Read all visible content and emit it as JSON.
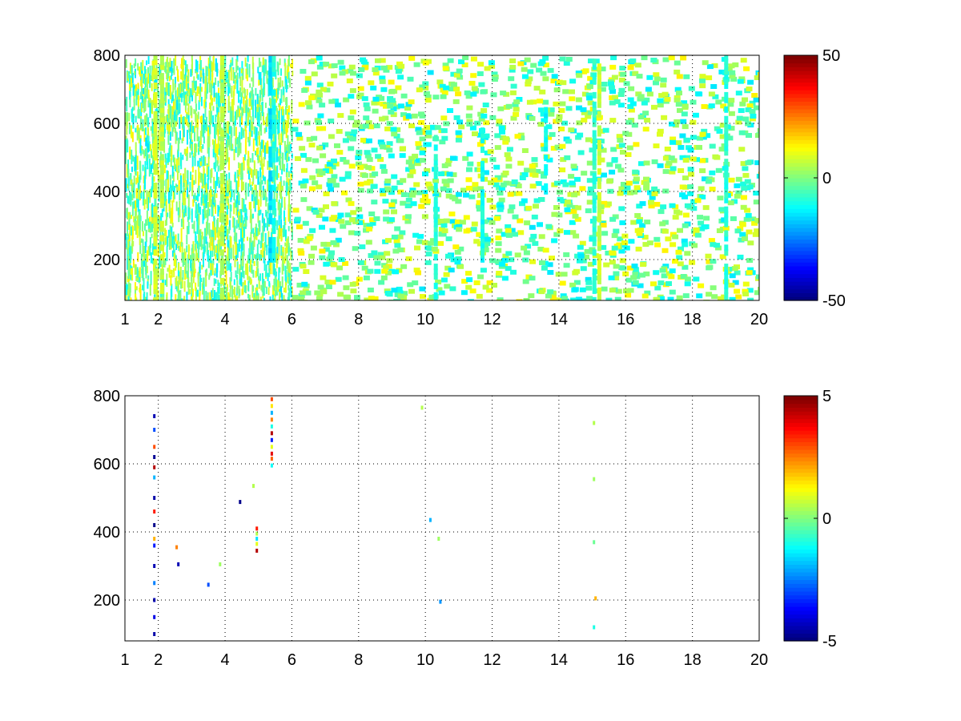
{
  "chart_data": [
    {
      "type": "heatmap",
      "title": "",
      "xlabel": "",
      "ylabel": "",
      "xlim": [
        1,
        20
      ],
      "ylim": [
        80,
        800
      ],
      "x_ticks": [
        "1",
        "2",
        "4",
        "6",
        "8",
        "10",
        "12",
        "14",
        "16",
        "18",
        "20"
      ],
      "x_tick_values": [
        1,
        2,
        4,
        6,
        8,
        10,
        12,
        14,
        16,
        18,
        20
      ],
      "y_ticks": [
        "200",
        "400",
        "600",
        "800"
      ],
      "y_tick_values": [
        200,
        400,
        600,
        800
      ],
      "grid": true,
      "colormap": "jet",
      "colorbar": {
        "min": -50,
        "max": 50,
        "ticks": [
          "50",
          "0",
          "-50"
        ],
        "tick_values": [
          50,
          0,
          -50
        ]
      },
      "hot_columns": [
        {
          "x": 1.9,
          "y0": 80,
          "y1": 800,
          "value": 8
        },
        {
          "x": 2.1,
          "y0": 80,
          "y1": 800,
          "value": 6
        },
        {
          "x": 3.9,
          "y0": 80,
          "y1": 800,
          "value": 5
        },
        {
          "x": 5.35,
          "y0": 200,
          "y1": 800,
          "value": -16
        },
        {
          "x": 5.45,
          "y0": 200,
          "y1": 800,
          "value": -10
        },
        {
          "x": 10.3,
          "y0": 80,
          "y1": 560,
          "value": -9
        },
        {
          "x": 11.7,
          "y0": 200,
          "y1": 600,
          "value": -11
        },
        {
          "x": 13.6,
          "y0": 400,
          "y1": 650,
          "value": -12
        },
        {
          "x": 15.05,
          "y0": 80,
          "y1": 800,
          "value": -8
        },
        {
          "x": 15.2,
          "y0": 80,
          "y1": 800,
          "value": 7
        },
        {
          "x": 19.0,
          "y0": 80,
          "y1": 800,
          "value": -9
        }
      ],
      "scatter_density": {
        "dense_until_x": 6,
        "sparse_from_x": 6,
        "value_range": [
          -15,
          14
        ]
      }
    },
    {
      "type": "heatmap",
      "title": "",
      "xlabel": "",
      "ylabel": "",
      "xlim": [
        1,
        20
      ],
      "ylim": [
        80,
        800
      ],
      "x_ticks": [
        "1",
        "2",
        "4",
        "6",
        "8",
        "10",
        "12",
        "14",
        "16",
        "18",
        "20"
      ],
      "x_tick_values": [
        1,
        2,
        4,
        6,
        8,
        10,
        12,
        14,
        16,
        18,
        20
      ],
      "y_ticks": [
        "200",
        "400",
        "600",
        "800"
      ],
      "y_tick_values": [
        200,
        400,
        600,
        800
      ],
      "grid": true,
      "colormap": "jet",
      "colorbar": {
        "min": -5,
        "max": 5,
        "ticks": [
          "5",
          "0",
          "-5"
        ],
        "tick_values": [
          5,
          0,
          -5
        ]
      },
      "points": [
        {
          "x": 1.88,
          "y": 740,
          "value": -4.5
        },
        {
          "x": 1.88,
          "y": 700,
          "value": -3
        },
        {
          "x": 1.88,
          "y": 650,
          "value": 3
        },
        {
          "x": 1.88,
          "y": 620,
          "value": -4.8
        },
        {
          "x": 1.88,
          "y": 590,
          "value": 4.5
        },
        {
          "x": 1.88,
          "y": 560,
          "value": -2
        },
        {
          "x": 1.88,
          "y": 500,
          "value": -4.6
        },
        {
          "x": 1.88,
          "y": 460,
          "value": 3.5
        },
        {
          "x": 1.88,
          "y": 420,
          "value": -4.9
        },
        {
          "x": 1.88,
          "y": 380,
          "value": 2
        },
        {
          "x": 1.88,
          "y": 360,
          "value": -3.5
        },
        {
          "x": 1.88,
          "y": 300,
          "value": -4.5
        },
        {
          "x": 1.88,
          "y": 250,
          "value": -2.5
        },
        {
          "x": 1.88,
          "y": 200,
          "value": -4.5
        },
        {
          "x": 1.88,
          "y": 150,
          "value": -4.0
        },
        {
          "x": 1.88,
          "y": 100,
          "value": -4.6
        },
        {
          "x": 2.55,
          "y": 355,
          "value": 2.5
        },
        {
          "x": 2.6,
          "y": 305,
          "value": -4.5
        },
        {
          "x": 3.5,
          "y": 245,
          "value": -3
        },
        {
          "x": 3.85,
          "y": 305,
          "value": 0.3
        },
        {
          "x": 4.45,
          "y": 488,
          "value": -4.9
        },
        {
          "x": 4.85,
          "y": 535,
          "value": 0.5
        },
        {
          "x": 4.95,
          "y": 410,
          "value": 3.5
        },
        {
          "x": 4.95,
          "y": 395,
          "value": 0.5
        },
        {
          "x": 4.95,
          "y": 380,
          "value": -1.5
        },
        {
          "x": 4.95,
          "y": 365,
          "value": 1
        },
        {
          "x": 4.95,
          "y": 345,
          "value": 4.5
        },
        {
          "x": 5.4,
          "y": 790,
          "value": 3
        },
        {
          "x": 5.4,
          "y": 770,
          "value": 1.5
        },
        {
          "x": 5.4,
          "y": 750,
          "value": -2
        },
        {
          "x": 5.4,
          "y": 730,
          "value": 2.5
        },
        {
          "x": 5.4,
          "y": 710,
          "value": -1
        },
        {
          "x": 5.4,
          "y": 690,
          "value": 4.5
        },
        {
          "x": 5.4,
          "y": 670,
          "value": -3.5
        },
        {
          "x": 5.4,
          "y": 650,
          "value": 1
        },
        {
          "x": 5.4,
          "y": 630,
          "value": 4
        },
        {
          "x": 5.4,
          "y": 615,
          "value": 2.8
        },
        {
          "x": 5.4,
          "y": 595,
          "value": -1.2
        },
        {
          "x": 9.9,
          "y": 765,
          "value": 0.5
        },
        {
          "x": 10.15,
          "y": 435,
          "value": -2
        },
        {
          "x": 10.4,
          "y": 380,
          "value": 0.3
        },
        {
          "x": 10.45,
          "y": 195,
          "value": -2.3
        },
        {
          "x": 15.05,
          "y": 720,
          "value": 0.5
        },
        {
          "x": 15.05,
          "y": 555,
          "value": 0.3
        },
        {
          "x": 15.05,
          "y": 370,
          "value": -0.2
        },
        {
          "x": 15.1,
          "y": 205,
          "value": 2
        },
        {
          "x": 15.05,
          "y": 120,
          "value": -1
        }
      ]
    }
  ]
}
